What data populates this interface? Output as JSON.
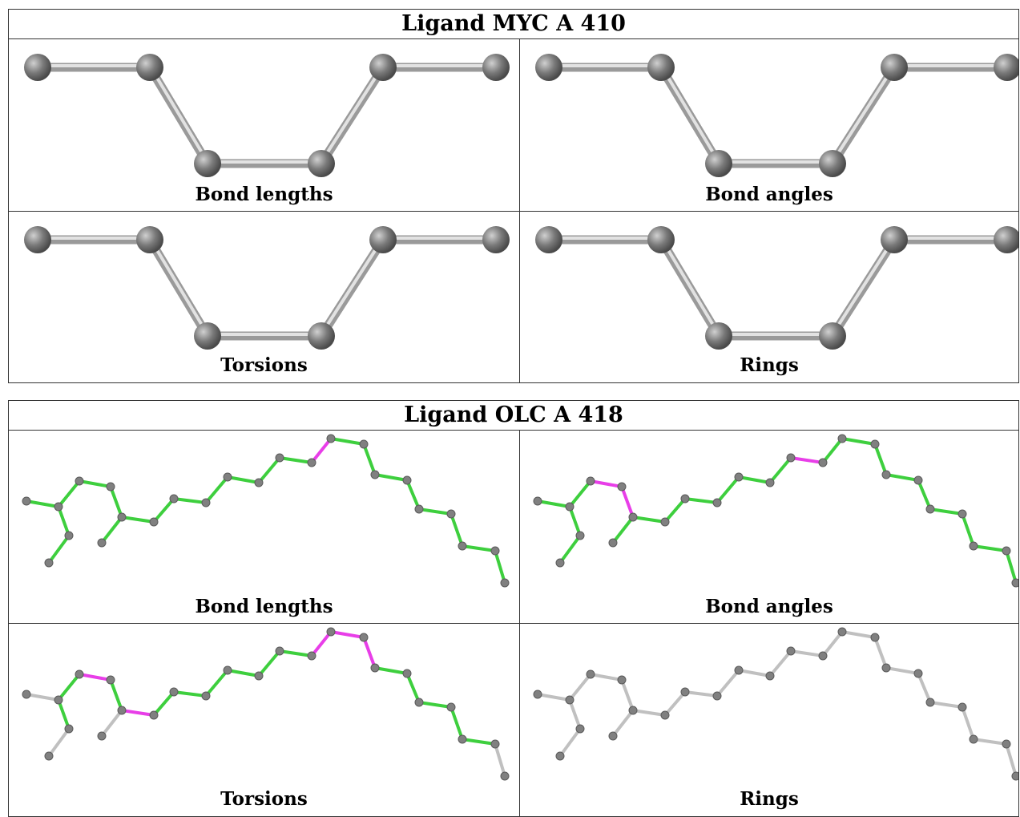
{
  "panels": [
    {
      "title": "Ligand MYC A 410",
      "cells": [
        {
          "label": "Bond lengths"
        },
        {
          "label": "Bond angles"
        },
        {
          "label": "Torsions"
        },
        {
          "label": "Rings"
        }
      ]
    },
    {
      "title": "Ligand OLC A 418",
      "cells": [
        {
          "label": "Bond lengths"
        },
        {
          "label": "Bond angles"
        },
        {
          "label": "Torsions"
        },
        {
          "label": "Rings"
        }
      ]
    }
  ],
  "colors": {
    "ok_bond": "#3ecf3e",
    "outlier_bond": "#e83ee8",
    "neutral_bond": "#c0c0c0",
    "atom": "#808080",
    "border": "#333333"
  }
}
